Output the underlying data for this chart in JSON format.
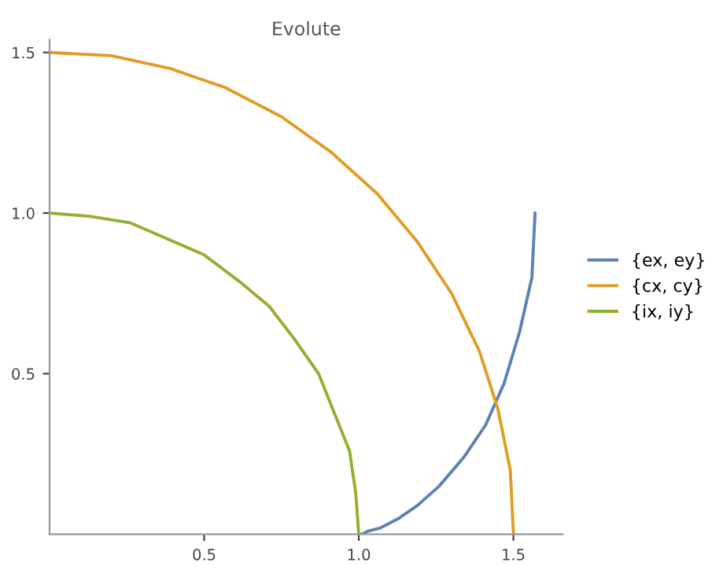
{
  "chart_data": {
    "type": "line",
    "title": "Evolute",
    "series": [
      {
        "name": "{ex, ey}",
        "color": "#5e81b5",
        "x": [
          1.0,
          1.01,
          1.03,
          1.07,
          1.13,
          1.19,
          1.26,
          1.34,
          1.41,
          1.47,
          1.52,
          1.56,
          1.57
        ],
        "values": [
          0.0,
          0.0,
          0.01,
          0.02,
          0.05,
          0.09,
          0.15,
          0.24,
          0.34,
          0.47,
          0.63,
          0.8,
          1.0
        ]
      },
      {
        "name": "{cx, cy}",
        "color": "#e19c24",
        "x": [
          1.5,
          1.49,
          1.45,
          1.39,
          1.3,
          1.19,
          1.06,
          0.91,
          0.75,
          0.57,
          0.39,
          0.2,
          0.0
        ],
        "values": [
          0.0,
          0.2,
          0.39,
          0.57,
          0.75,
          0.91,
          1.06,
          1.19,
          1.3,
          1.39,
          1.45,
          1.49,
          1.5
        ]
      },
      {
        "name": "{ix, iy}",
        "color": "#8fb032",
        "x": [
          1.0,
          0.99,
          0.97,
          0.92,
          0.87,
          0.79,
          0.71,
          0.61,
          0.5,
          0.38,
          0.26,
          0.13,
          0.0
        ],
        "values": [
          0.0,
          0.13,
          0.26,
          0.38,
          0.5,
          0.61,
          0.71,
          0.79,
          0.87,
          0.92,
          0.97,
          0.99,
          1.0
        ]
      }
    ],
    "xlim": [
      0,
      1.66
    ],
    "ylim": [
      0,
      1.54
    ],
    "xticks": [
      0.5,
      {
        "value": 1,
        "label": "1.0"
      },
      1.5
    ],
    "yticks": [
      0.5,
      {
        "value": 1,
        "label": "1.0"
      },
      1.5
    ],
    "legend": "right",
    "grid": false
  }
}
